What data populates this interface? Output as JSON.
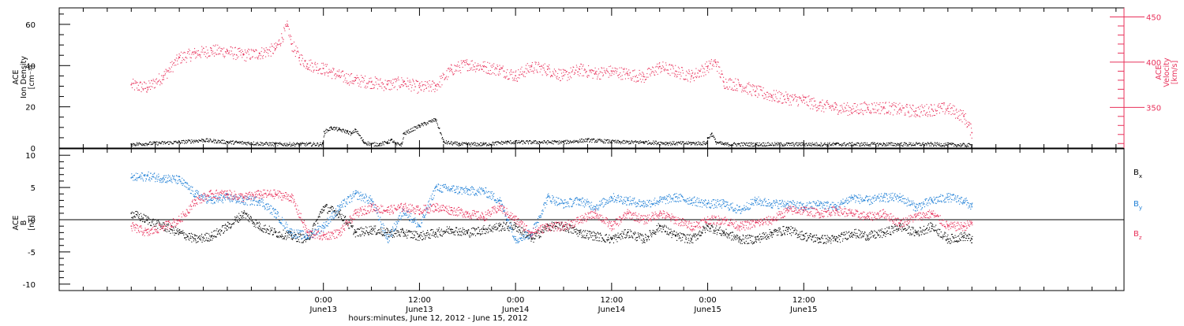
{
  "chart_data": [
    {
      "type": "scatter",
      "panel": "top",
      "left_ylabel": [
        "ACE",
        "Ion Density",
        "[cm⁻³]"
      ],
      "right_ylabel": [
        "ACE",
        "Velocity",
        "[km/s]"
      ],
      "left_ylim": [
        0,
        68
      ],
      "right_ylim": [
        305,
        460
      ],
      "left_ticks": [
        "0",
        "20",
        "40",
        "60"
      ],
      "right_ticks": [
        "350",
        "400",
        "450"
      ],
      "colors": {
        "density": "#000000",
        "velocity": "#e8305a"
      },
      "series": [
        {
          "axis": "left",
          "x_hours": [
            0,
            3,
            6,
            9,
            12,
            15,
            18,
            20.9,
            21.2,
            23.9,
            24.1,
            25,
            26,
            27,
            27.5,
            28,
            29,
            30,
            31,
            32,
            32.5,
            33,
            33.8,
            34,
            36,
            38,
            39,
            41,
            42,
            44,
            47,
            51,
            54,
            57,
            61,
            64,
            67,
            70,
            71.8,
            72,
            72.5,
            73,
            74,
            78,
            84,
            88,
            94,
            100,
            105
          ],
          "values": [
            2,
            2.5,
            3,
            4,
            3,
            2.5,
            2,
            2,
            2,
            2,
            8,
            10,
            9,
            8,
            7,
            9,
            3,
            2,
            2,
            3,
            4,
            2,
            2,
            7,
            11,
            14,
            3,
            2,
            2,
            2,
            3,
            3,
            3,
            4,
            3,
            3,
            2.5,
            2.5,
            2.5,
            5,
            7,
            3,
            2,
            2,
            2,
            2,
            2,
            2,
            1.5
          ]
        },
        {
          "axis": "right",
          "x_hours": [
            0,
            2,
            4,
            6,
            8,
            10,
            12,
            14,
            16,
            18,
            19.5,
            20,
            21,
            22,
            24,
            26,
            28,
            30,
            32,
            34,
            36,
            38,
            40,
            42,
            44,
            46,
            48,
            50,
            52,
            54,
            56,
            58,
            60,
            62,
            64,
            66,
            68,
            70,
            71,
            72,
            73,
            74,
            76,
            78,
            80,
            82,
            84,
            86,
            88,
            90,
            92,
            94,
            96,
            98,
            100,
            102,
            104,
            105
          ],
          "values": [
            375,
            372,
            385,
            405,
            410,
            413,
            412,
            408,
            410,
            415,
            440,
            420,
            405,
            398,
            393,
            385,
            380,
            378,
            375,
            378,
            372,
            374,
            392,
            398,
            395,
            392,
            385,
            395,
            392,
            385,
            392,
            388,
            390,
            387,
            384,
            395,
            390,
            385,
            390,
            395,
            400,
            378,
            375,
            368,
            363,
            360,
            358,
            352,
            350,
            348,
            350,
            350,
            348,
            346,
            348,
            349,
            340,
            322
          ]
        }
      ]
    },
    {
      "type": "scatter",
      "panel": "bottom",
      "ylabel": [
        "ACE",
        "B",
        "[nT]"
      ],
      "ylim": [
        -11,
        11
      ],
      "ticks": [
        "-10",
        "-5",
        "0",
        "5",
        "10"
      ],
      "zero_line": true,
      "series": [
        {
          "name": "B",
          "subscript": "x",
          "color": "#000000",
          "x_hours": [
            0,
            2,
            4,
            6,
            8,
            10,
            12,
            14,
            16,
            18,
            20,
            22,
            24,
            26,
            28,
            30,
            32,
            34,
            36,
            38,
            40,
            42,
            44,
            46,
            48,
            50,
            52,
            54,
            56,
            58,
            60,
            62,
            64,
            66,
            68,
            70,
            72,
            74,
            76,
            78,
            80,
            82,
            84,
            86,
            88,
            90,
            92,
            94,
            96,
            98,
            100,
            102,
            104,
            105
          ],
          "values": [
            1,
            0,
            -1,
            -2,
            -3,
            -2.5,
            -1,
            1,
            -1,
            -2,
            -2.5,
            -3,
            2,
            1,
            -2,
            -1.5,
            -2,
            -2,
            -2.5,
            -2,
            -1.5,
            -2,
            -1.5,
            -1,
            -1,
            -3,
            -1,
            -1,
            -2,
            -2.5,
            -3,
            -2,
            -3,
            -1,
            -2.5,
            -3,
            -1,
            -2,
            -3,
            -3,
            -2,
            -1.5,
            -2.5,
            -3,
            -3,
            -2,
            -2.5,
            -2,
            -1,
            -2,
            -1,
            -3,
            -2.5,
            -3
          ]
        },
        {
          "name": "B",
          "subscript": "y",
          "color": "#1e7fd6",
          "x_hours": [
            0,
            2,
            4,
            6,
            8,
            10,
            12,
            14,
            16,
            18,
            20,
            22,
            24,
            26,
            28,
            30,
            32,
            34,
            36,
            38,
            40,
            42,
            44,
            46,
            48,
            50,
            52,
            54,
            56,
            58,
            60,
            62,
            64,
            66,
            68,
            70,
            72,
            74,
            76,
            78,
            80,
            82,
            84,
            86,
            88,
            90,
            92,
            94,
            96,
            98,
            100,
            102,
            104,
            105
          ],
          "values": [
            6.5,
            6.8,
            6.5,
            6.2,
            4,
            3,
            3.5,
            3,
            3,
            1,
            -2,
            -2.5,
            -1,
            2,
            4,
            3,
            -3,
            1.5,
            -1,
            5,
            4.8,
            4.5,
            4.5,
            3,
            -3,
            -2,
            3.5,
            2.5,
            3,
            2,
            3.5,
            3,
            2.5,
            3,
            3.5,
            3,
            2.5,
            2.5,
            1.5,
            3,
            2.5,
            2.5,
            2,
            2.5,
            2,
            3.5,
            3,
            3.5,
            3.5,
            2,
            3,
            3.5,
            3,
            2
          ]
        },
        {
          "name": "B",
          "subscript": "z",
          "color": "#e8305a",
          "x_hours": [
            0,
            2,
            4,
            6,
            8,
            10,
            12,
            14,
            16,
            18,
            20,
            22,
            24,
            26,
            28,
            30,
            32,
            34,
            36,
            38,
            40,
            42,
            44,
            46,
            48,
            50,
            52,
            54,
            56,
            58,
            60,
            62,
            64,
            66,
            68,
            70,
            72,
            74,
            76,
            78,
            80,
            82,
            84,
            86,
            88,
            90,
            92,
            94,
            96,
            98,
            100,
            102,
            104,
            105
          ],
          "values": [
            -1,
            -2,
            -1,
            0,
            3,
            4,
            4,
            3.5,
            4,
            4,
            3.5,
            -2,
            -2.5,
            -2,
            1,
            2,
            1.5,
            2,
            1.5,
            2,
            1.5,
            1,
            0.5,
            2,
            0,
            -2,
            -1,
            -1,
            0,
            1,
            -1,
            1,
            0,
            1,
            0,
            -1,
            0,
            0,
            -1,
            -0.5,
            0,
            1.5,
            1.5,
            1,
            1.5,
            1,
            0.5,
            1,
            -0.5,
            0.5,
            1,
            -1,
            -1,
            -0.5
          ]
        }
      ]
    }
  ],
  "x_axis": {
    "range_hours": [
      -9,
      124
    ],
    "ticks": [
      {
        "hours": 24,
        "time": "0:00",
        "date": "June13"
      },
      {
        "hours": 36,
        "time": "12:00",
        "date": "June13"
      },
      {
        "hours": 48,
        "time": "0:00",
        "date": "June14"
      },
      {
        "hours": 60,
        "time": "12:00",
        "date": "June14"
      },
      {
        "hours": 72,
        "time": "0:00",
        "date": "June15"
      },
      {
        "hours": 84,
        "time": "12:00",
        "date": "June15"
      }
    ],
    "label": "hours:minutes, June 12, 2012 - June 15, 2012"
  }
}
